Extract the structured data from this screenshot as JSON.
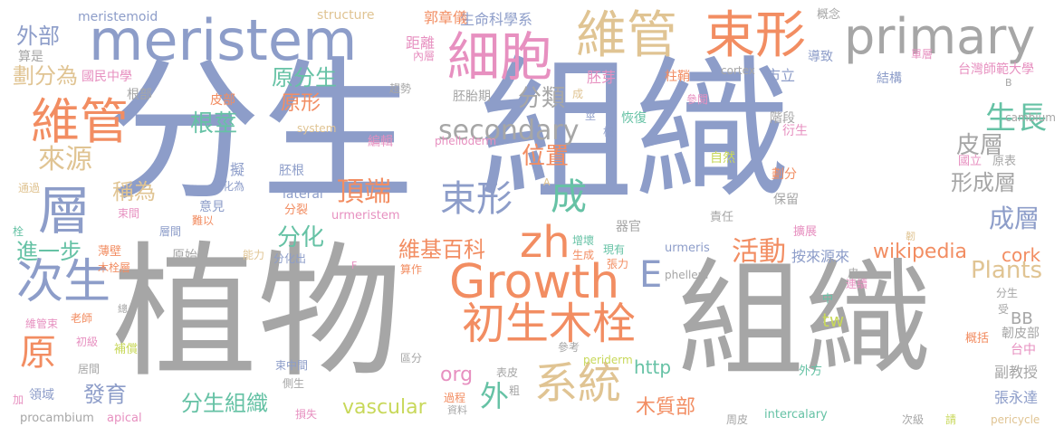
{
  "palette": {
    "blue": "#8d9dc9",
    "gray": "#a6a6a6",
    "orange": "#f28d62",
    "tan": "#e0c493",
    "green": "#66c2a5",
    "yellow": "#c8d85a",
    "pink": "#e790c0"
  },
  "words": [
    {
      "text": "分生",
      "color": "blue",
      "vertical": false
    },
    {
      "text": "組織",
      "color": "blue",
      "vertical": false
    },
    {
      "text": "植物",
      "color": "gray",
      "vertical": false
    },
    {
      "text": "組織",
      "color": "gray",
      "vertical": false
    },
    {
      "text": "meristem",
      "color": "blue",
      "vertical": false
    },
    {
      "text": "primary",
      "color": "gray",
      "vertical": false
    },
    {
      "text": "維管",
      "color": "tan",
      "vertical": false
    },
    {
      "text": "束形",
      "color": "orange",
      "vertical": false
    },
    {
      "text": "細胞",
      "color": "pink",
      "vertical": false
    },
    {
      "text": "維管",
      "color": "orange",
      "vertical": false
    },
    {
      "text": "層",
      "color": "blue",
      "vertical": false
    },
    {
      "text": "次生",
      "color": "blue",
      "vertical": false
    },
    {
      "text": "Growth",
      "color": "orange",
      "vertical": false
    },
    {
      "text": "zh",
      "color": "orange",
      "vertical": false
    },
    {
      "text": "初生木栓",
      "color": "orange",
      "vertical": false
    },
    {
      "text": "系統",
      "color": "tan",
      "vertical": false
    },
    {
      "text": "原",
      "color": "orange",
      "vertical": false
    },
    {
      "text": "束形",
      "color": "blue",
      "vertical": false
    },
    {
      "text": "成",
      "color": "green",
      "vertical": false
    },
    {
      "text": "secondary",
      "color": "gray",
      "vertical": false
    },
    {
      "text": "E",
      "color": "blue",
      "vertical": false
    },
    {
      "text": "外",
      "color": "green",
      "vertical": false
    },
    {
      "text": "生長",
      "color": "green",
      "vertical": false
    },
    {
      "text": "來源",
      "color": "tan",
      "vertical": false
    },
    {
      "text": "活動",
      "color": "orange",
      "vertical": false
    },
    {
      "text": "頂端",
      "color": "orange",
      "vertical": false
    },
    {
      "text": "外部",
      "color": "blue",
      "vertical": false
    },
    {
      "text": "劃分為",
      "color": "tan",
      "vertical": false
    },
    {
      "text": "原分生",
      "color": "green",
      "vertical": false
    },
    {
      "text": "原形",
      "color": "orange",
      "vertical": false
    },
    {
      "text": "分類",
      "color": "gray",
      "vertical": false
    },
    {
      "text": "位置",
      "color": "orange",
      "vertical": false
    },
    {
      "text": "根莖",
      "color": "green",
      "vertical": false
    },
    {
      "text": "稱為",
      "color": "tan",
      "vertical": false
    },
    {
      "text": "分化",
      "color": "green",
      "vertical": false
    },
    {
      "text": "維基百科",
      "color": "orange",
      "vertical": false
    },
    {
      "text": "皮層",
      "color": "gray",
      "vertical": false
    },
    {
      "text": "形成層",
      "color": "gray",
      "vertical": false
    },
    {
      "text": "成層",
      "color": "blue",
      "vertical": false
    },
    {
      "text": "Plants",
      "color": "tan",
      "vertical": false
    },
    {
      "text": "cork",
      "color": "orange",
      "vertical": false
    },
    {
      "text": "wikipedia",
      "color": "orange",
      "vertical": false
    },
    {
      "text": "進一步",
      "color": "green",
      "vertical": false
    },
    {
      "text": "發育",
      "color": "blue",
      "vertical": false
    },
    {
      "text": "分生組織",
      "color": "green",
      "vertical": false
    },
    {
      "text": "vascular",
      "color": "yellow",
      "vertical": false
    },
    {
      "text": "木質部",
      "color": "orange",
      "vertical": false
    },
    {
      "text": "http",
      "color": "green",
      "vertical": false
    },
    {
      "text": "org",
      "color": "pink",
      "vertical": false
    },
    {
      "text": "tw",
      "color": "yellow",
      "vertical": false
    },
    {
      "text": "BB",
      "color": "gray",
      "vertical": false
    },
    {
      "text": "台灣師範大學",
      "color": "pink",
      "vertical": false
    },
    {
      "text": "生命科學系",
      "color": "blue",
      "vertical": false
    },
    {
      "text": "郭章儀",
      "color": "orange",
      "vertical": false
    },
    {
      "text": "meristemoid",
      "color": "blue",
      "vertical": false
    },
    {
      "text": "structure",
      "color": "tan",
      "vertical": false
    },
    {
      "text": "國民中學",
      "color": "pink",
      "vertical": false
    },
    {
      "text": "算是",
      "color": "gray",
      "vertical": false
    },
    {
      "text": "根部",
      "color": "gray",
      "vertical": false
    },
    {
      "text": "皮部",
      "color": "orange",
      "vertical": false
    },
    {
      "text": "距離",
      "color": "pink",
      "vertical": false
    },
    {
      "text": "內層",
      "color": "pink",
      "vertical": false
    },
    {
      "text": "胚芽",
      "color": "pink",
      "vertical": false
    },
    {
      "text": "柱鞘",
      "color": "orange",
      "vertical": false
    },
    {
      "text": "市立",
      "color": "blue",
      "vertical": false
    },
    {
      "text": "導致",
      "color": "blue",
      "vertical": false
    },
    {
      "text": "概念",
      "color": "gray",
      "vertical": false
    },
    {
      "text": "單層",
      "color": "pink",
      "vertical": false
    },
    {
      "text": "結構",
      "color": "blue",
      "vertical": false
    },
    {
      "text": "cortex",
      "color": "gray",
      "vertical": false
    },
    {
      "text": "趨勢",
      "color": "gray",
      "vertical": false
    },
    {
      "text": "胚胎期",
      "color": "gray",
      "vertical": false
    },
    {
      "text": "恢復",
      "color": "green",
      "vertical": false
    },
    {
      "text": "參閱",
      "color": "pink",
      "vertical": false
    },
    {
      "text": "階段",
      "color": "gray",
      "vertical": false
    },
    {
      "text": "cambium",
      "color": "gray",
      "vertical": false
    },
    {
      "text": "system",
      "color": "tan",
      "vertical": false
    },
    {
      "text": "編輯",
      "color": "pink",
      "vertical": false
    },
    {
      "text": "phelloderm",
      "color": "pink",
      "vertical": false
    },
    {
      "text": "自然",
      "color": "yellow",
      "vertical": false
    },
    {
      "text": "衍生",
      "color": "pink",
      "vertical": false
    },
    {
      "text": "國立",
      "color": "pink",
      "vertical": false
    },
    {
      "text": "原表",
      "color": "gray",
      "vertical": false
    },
    {
      "text": "劃分",
      "color": "orange",
      "vertical": false
    },
    {
      "text": "保留",
      "color": "gray",
      "vertical": false
    },
    {
      "text": "擬",
      "color": "blue",
      "vertical": false
    },
    {
      "text": "分化為",
      "color": "blue",
      "vertical": false
    },
    {
      "text": "胚根",
      "color": "blue",
      "vertical": false
    },
    {
      "text": "意見",
      "color": "blue",
      "vertical": false
    },
    {
      "text": "難以",
      "color": "orange",
      "vertical": false
    },
    {
      "text": "lateral",
      "color": "blue",
      "vertical": false
    },
    {
      "text": "分裂",
      "color": "orange",
      "vertical": false
    },
    {
      "text": "urmeristem",
      "color": "pink",
      "vertical": false
    },
    {
      "text": "責任",
      "color": "gray",
      "vertical": false
    },
    {
      "text": "擴展",
      "color": "pink",
      "vertical": false
    },
    {
      "text": "器官",
      "color": "gray",
      "vertical": false
    },
    {
      "text": "增壞",
      "color": "green",
      "vertical": false
    },
    {
      "text": "現有",
      "color": "green",
      "vertical": false
    },
    {
      "text": "生成",
      "color": "orange",
      "vertical": false
    },
    {
      "text": "張力",
      "color": "orange",
      "vertical": false
    },
    {
      "text": "urmeris",
      "color": "blue",
      "vertical": false
    },
    {
      "text": "按來源來",
      "color": "blue",
      "vertical": false
    },
    {
      "text": "phellem",
      "color": "gray",
      "vertical": false
    },
    {
      "text": "通過",
      "color": "tan",
      "vertical": false
    },
    {
      "text": "束間",
      "color": "pink",
      "vertical": false
    },
    {
      "text": "層間",
      "color": "blue",
      "vertical": false
    },
    {
      "text": "薄壁",
      "color": "orange",
      "vertical": false
    },
    {
      "text": "木栓層",
      "color": "orange",
      "vertical": false
    },
    {
      "text": "原始",
      "color": "gray",
      "vertical": false
    },
    {
      "text": "能力",
      "color": "tan",
      "vertical": false
    },
    {
      "text": "分化出",
      "color": "blue",
      "vertical": false
    },
    {
      "text": "算作",
      "color": "orange",
      "vertical": false
    },
    {
      "text": "連續",
      "color": "pink",
      "vertical": false
    },
    {
      "text": "中",
      "color": "green",
      "vertical": false
    },
    {
      "text": "皮",
      "color": "gray",
      "vertical": false
    },
    {
      "text": "分生",
      "color": "gray",
      "vertical": false
    },
    {
      "text": "受",
      "color": "gray",
      "vertical": false
    },
    {
      "text": "韌皮部",
      "color": "gray",
      "vertical": false
    },
    {
      "text": "維管束",
      "color": "pink",
      "vertical": false
    },
    {
      "text": "老師",
      "color": "orange",
      "vertical": false
    },
    {
      "text": "初級",
      "color": "pink",
      "vertical": false
    },
    {
      "text": "補償",
      "color": "yellow",
      "vertical": false
    },
    {
      "text": "居間",
      "color": "gray",
      "vertical": false
    },
    {
      "text": "束中間",
      "color": "blue",
      "vertical": false
    },
    {
      "text": "側生",
      "color": "gray",
      "vertical": false
    },
    {
      "text": "區分",
      "color": "gray",
      "vertical": false
    },
    {
      "text": "參考",
      "color": "gray",
      "vertical": false
    },
    {
      "text": "表皮",
      "color": "gray",
      "vertical": false
    },
    {
      "text": "periderm",
      "color": "yellow",
      "vertical": false
    },
    {
      "text": "概括",
      "color": "orange",
      "vertical": false
    },
    {
      "text": "台中",
      "color": "pink",
      "vertical": false
    },
    {
      "text": "外方",
      "color": "green",
      "vertical": false
    },
    {
      "text": "副教授",
      "color": "gray",
      "vertical": false
    },
    {
      "text": "張永達",
      "color": "blue",
      "vertical": false
    },
    {
      "text": "領域",
      "color": "blue",
      "vertical": false
    },
    {
      "text": "加",
      "color": "pink",
      "vertical": false
    },
    {
      "text": "procambium",
      "color": "gray",
      "vertical": false
    },
    {
      "text": "apical",
      "color": "pink",
      "vertical": false
    },
    {
      "text": "損失",
      "color": "pink",
      "vertical": false
    },
    {
      "text": "資料",
      "color": "gray",
      "vertical": false
    },
    {
      "text": "過程",
      "color": "orange",
      "vertical": false
    },
    {
      "text": "粗",
      "color": "gray",
      "vertical": false
    },
    {
      "text": "周皮",
      "color": "gray",
      "vertical": false
    },
    {
      "text": "intercalary",
      "color": "green",
      "vertical": false
    },
    {
      "text": "次級",
      "color": "gray",
      "vertical": false
    },
    {
      "text": "請",
      "color": "yellow",
      "vertical": false
    },
    {
      "text": "pericycle",
      "color": "tan",
      "vertical": false
    },
    {
      "text": "成",
      "color": "tan",
      "vertical": false
    },
    {
      "text": "莖",
      "color": "blue",
      "vertical": false
    },
    {
      "text": "根",
      "color": "blue",
      "vertical": false
    },
    {
      "text": "栓",
      "color": "green",
      "vertical": false
    },
    {
      "text": "總",
      "color": "gray",
      "vertical": false
    },
    {
      "text": "韌",
      "color": "tan",
      "vertical": false
    },
    {
      "text": "B",
      "color": "gray",
      "vertical": false
    },
    {
      "text": "A",
      "color": "tan",
      "vertical": false
    },
    {
      "text": "F",
      "color": "pink",
      "vertical": false
    }
  ]
}
